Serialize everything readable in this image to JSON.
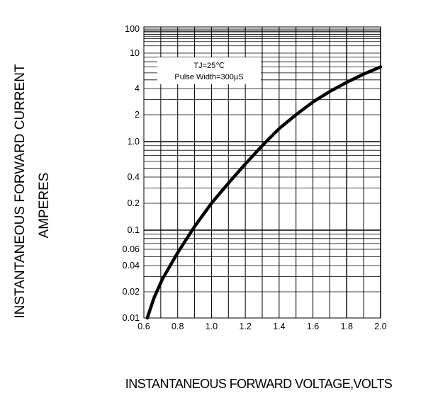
{
  "chart_data": {
    "type": "line",
    "ylabel_line1": "INSTANTANEOUS FORWARD CURRENT",
    "ylabel_line2": "AMPERES",
    "xlabel": "INSTANTANEOUS FORWARD VOLTAGE,VOLTS",
    "annotation_line1": "TJ=25℃",
    "annotation_line2": "Pulse Width=300µS",
    "x_scale": "linear",
    "y_scale": "log",
    "xlim": [
      0.6,
      2.0
    ],
    "ylim": [
      0.01,
      100
    ],
    "x_ticks": [
      0.6,
      0.8,
      1.0,
      1.2,
      1.4,
      1.6,
      1.8,
      2.0
    ],
    "x_tick_labels": [
      "0.6",
      "0.8",
      "1.0",
      "1.2",
      "1.4",
      "1.6",
      "1.8",
      "2.0"
    ],
    "y_ticks": [
      0.01,
      0.02,
      0.04,
      0.06,
      0.1,
      0.2,
      0.4,
      1.0,
      2,
      4,
      10,
      100
    ],
    "y_tick_labels": [
      "0.01",
      "0.02",
      "0.04",
      "0.06",
      "0.1",
      "0.2",
      "0.4",
      "1.0",
      "2",
      "4",
      "10",
      "100"
    ],
    "grid": true,
    "series": [
      {
        "x": [
          0.62,
          0.66,
          0.71,
          0.8,
          0.9,
          1.0,
          1.1,
          1.2,
          1.3,
          1.4,
          1.5,
          1.6,
          1.7,
          1.8,
          1.9,
          2.0
        ],
        "y": [
          0.01,
          0.017,
          0.028,
          0.055,
          0.11,
          0.2,
          0.34,
          0.56,
          0.9,
          1.4,
          2.0,
          2.8,
          3.7,
          4.7,
          5.8,
          7.0
        ]
      }
    ]
  }
}
